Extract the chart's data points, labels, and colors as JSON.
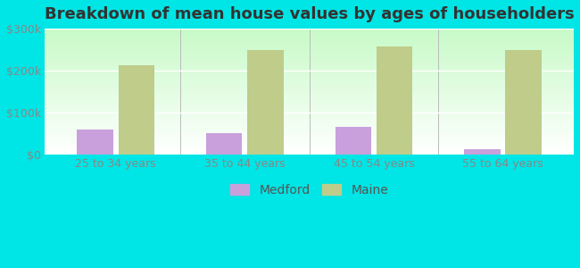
{
  "title": "Breakdown of mean house values by ages of householders",
  "categories": [
    "25 to 34 years",
    "35 to 44 years",
    "45 to 54 years",
    "55 to 64 years"
  ],
  "medford": [
    60000,
    50000,
    65000,
    12000
  ],
  "maine": [
    213000,
    248000,
    258000,
    248000
  ],
  "medford_color": "#c9a0dc",
  "maine_color": "#bfcc8a",
  "background_color": "#00e5e5",
  "ylim": [
    0,
    300000
  ],
  "yticks": [
    0,
    100000,
    200000,
    300000
  ],
  "ytick_labels": [
    "$0",
    "$100k",
    "$200k",
    "$300k"
  ],
  "legend_labels": [
    "Medford",
    "Maine"
  ],
  "title_fontsize": 13,
  "tick_fontsize": 9,
  "legend_fontsize": 10,
  "bar_width": 0.28
}
